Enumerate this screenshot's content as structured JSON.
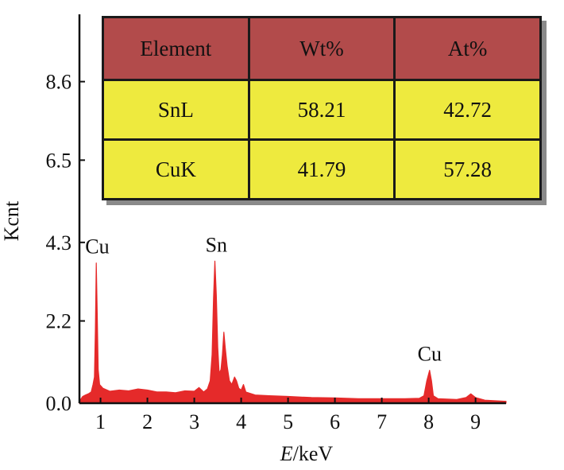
{
  "chart_data": {
    "type": "line",
    "xlabel_italic": "E",
    "xlabel_rest": "/keV",
    "ylabel": "Kcnt",
    "xlim": [
      0.55,
      9.65
    ],
    "ylim": [
      0.0,
      10.4
    ],
    "x_ticks": [
      1,
      2,
      3,
      4,
      5,
      6,
      7,
      8,
      9
    ],
    "y_ticks": [
      {
        "value": 0.0,
        "label": "0.0"
      },
      {
        "value": 2.2,
        "label": "2.2"
      },
      {
        "value": 4.3,
        "label": "4.3"
      },
      {
        "value": 6.5,
        "label": "6.5"
      },
      {
        "value": 8.6,
        "label": "8.6"
      }
    ],
    "series": [
      {
        "color": "#e52a2a",
        "points": [
          [
            0.55,
            0.05
          ],
          [
            0.62,
            0.18
          ],
          [
            0.68,
            0.22
          ],
          [
            0.74,
            0.25
          ],
          [
            0.8,
            0.3
          ],
          [
            0.84,
            0.5
          ],
          [
            0.87,
            0.7
          ],
          [
            0.89,
            2.0
          ],
          [
            0.91,
            3.75
          ],
          [
            0.93,
            2.4
          ],
          [
            0.95,
            0.9
          ],
          [
            0.98,
            0.5
          ],
          [
            1.05,
            0.4
          ],
          [
            1.2,
            0.32
          ],
          [
            1.4,
            0.35
          ],
          [
            1.6,
            0.33
          ],
          [
            1.8,
            0.38
          ],
          [
            2.0,
            0.35
          ],
          [
            2.2,
            0.3
          ],
          [
            2.4,
            0.3
          ],
          [
            2.6,
            0.28
          ],
          [
            2.8,
            0.33
          ],
          [
            3.0,
            0.32
          ],
          [
            3.1,
            0.42
          ],
          [
            3.2,
            0.3
          ],
          [
            3.28,
            0.38
          ],
          [
            3.34,
            0.6
          ],
          [
            3.38,
            1.3
          ],
          [
            3.41,
            2.8
          ],
          [
            3.44,
            3.8
          ],
          [
            3.47,
            2.9
          ],
          [
            3.5,
            1.5
          ],
          [
            3.53,
            0.8
          ],
          [
            3.57,
            0.9
          ],
          [
            3.6,
            1.3
          ],
          [
            3.63,
            1.9
          ],
          [
            3.66,
            1.5
          ],
          [
            3.7,
            1.0
          ],
          [
            3.75,
            0.6
          ],
          [
            3.8,
            0.5
          ],
          [
            3.86,
            0.7
          ],
          [
            3.9,
            0.6
          ],
          [
            3.95,
            0.4
          ],
          [
            4.0,
            0.35
          ],
          [
            4.05,
            0.5
          ],
          [
            4.1,
            0.3
          ],
          [
            4.3,
            0.22
          ],
          [
            4.6,
            0.2
          ],
          [
            5.0,
            0.18
          ],
          [
            5.5,
            0.15
          ],
          [
            6.0,
            0.14
          ],
          [
            6.5,
            0.12
          ],
          [
            7.0,
            0.12
          ],
          [
            7.5,
            0.12
          ],
          [
            7.8,
            0.13
          ],
          [
            7.9,
            0.2
          ],
          [
            7.96,
            0.6
          ],
          [
            8.02,
            0.88
          ],
          [
            8.06,
            0.6
          ],
          [
            8.1,
            0.2
          ],
          [
            8.2,
            0.12
          ],
          [
            8.6,
            0.1
          ],
          [
            8.8,
            0.15
          ],
          [
            8.9,
            0.25
          ],
          [
            9.0,
            0.15
          ],
          [
            9.2,
            0.08
          ],
          [
            9.65,
            0.05
          ]
        ]
      }
    ],
    "peak_labels": [
      {
        "text": "Cu",
        "x": 0.93,
        "y": 3.75
      },
      {
        "text": "Sn",
        "x": 3.47,
        "y": 3.8
      },
      {
        "text": "Cu",
        "x": 8.02,
        "y": 0.88
      }
    ],
    "inset_table": {
      "headers": [
        "Element",
        "Wt%",
        "At%"
      ],
      "rows": [
        [
          "SnL",
          "58.21",
          "42.72"
        ],
        [
          "CuK",
          "41.79",
          "57.28"
        ]
      ]
    }
  }
}
